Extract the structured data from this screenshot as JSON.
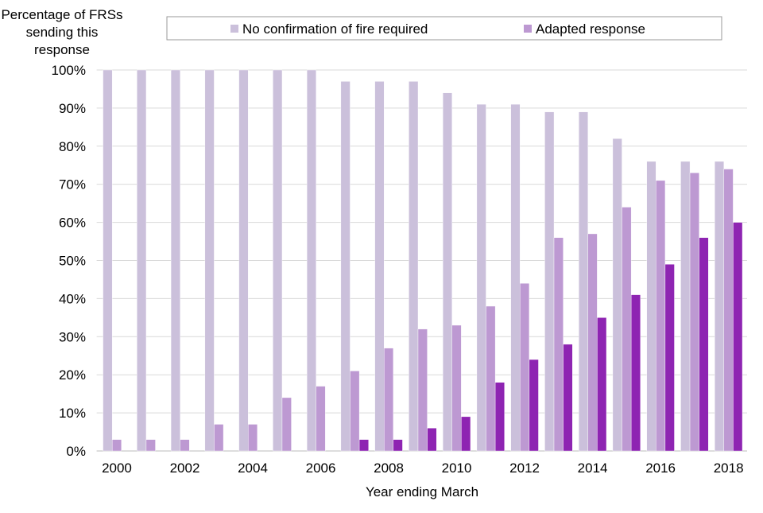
{
  "chart_data": {
    "type": "bar",
    "title": "",
    "ylabel_lines": [
      "Percentage of FRSs",
      "sending this",
      "response"
    ],
    "xlabel": "Year ending March",
    "ylim": [
      0,
      100
    ],
    "yticks": [
      "0%",
      "10%",
      "20%",
      "30%",
      "40%",
      "50%",
      "60%",
      "70%",
      "80%",
      "90%",
      "100%"
    ],
    "grid": true,
    "legend_placement": "top",
    "categories": [
      "2000",
      "2001",
      "2002",
      "2003",
      "2004",
      "2005",
      "2006",
      "2007",
      "2008",
      "2009",
      "2010",
      "2011",
      "2012",
      "2013",
      "2014",
      "2015",
      "2016",
      "2017",
      "2018"
    ],
    "xtick_labels": [
      "2000",
      "",
      "2002",
      "",
      "2004",
      "",
      "2006",
      "",
      "2008",
      "",
      "2010",
      "",
      "2012",
      "",
      "2014",
      "",
      "2016",
      "",
      "2018"
    ],
    "series": [
      {
        "name": "No confirmation of fire required",
        "color": "#cbc0db",
        "values": [
          100,
          100,
          100,
          100,
          100,
          100,
          100,
          97,
          97,
          97,
          94,
          91,
          91,
          89,
          89,
          82,
          76,
          76,
          76
        ]
      },
      {
        "name": "Adapted response",
        "color": "#bd99d2",
        "values": [
          3,
          3,
          3,
          7,
          7,
          14,
          17,
          21,
          27,
          32,
          33,
          38,
          44,
          56,
          57,
          64,
          71,
          73,
          74
        ]
      },
      {
        "color": "#8e24b2",
        "values": [
          0,
          0,
          0,
          0,
          0,
          0,
          0,
          3,
          3,
          6,
          9,
          18,
          24,
          28,
          35,
          41,
          49,
          56,
          60
        ]
      }
    ]
  }
}
